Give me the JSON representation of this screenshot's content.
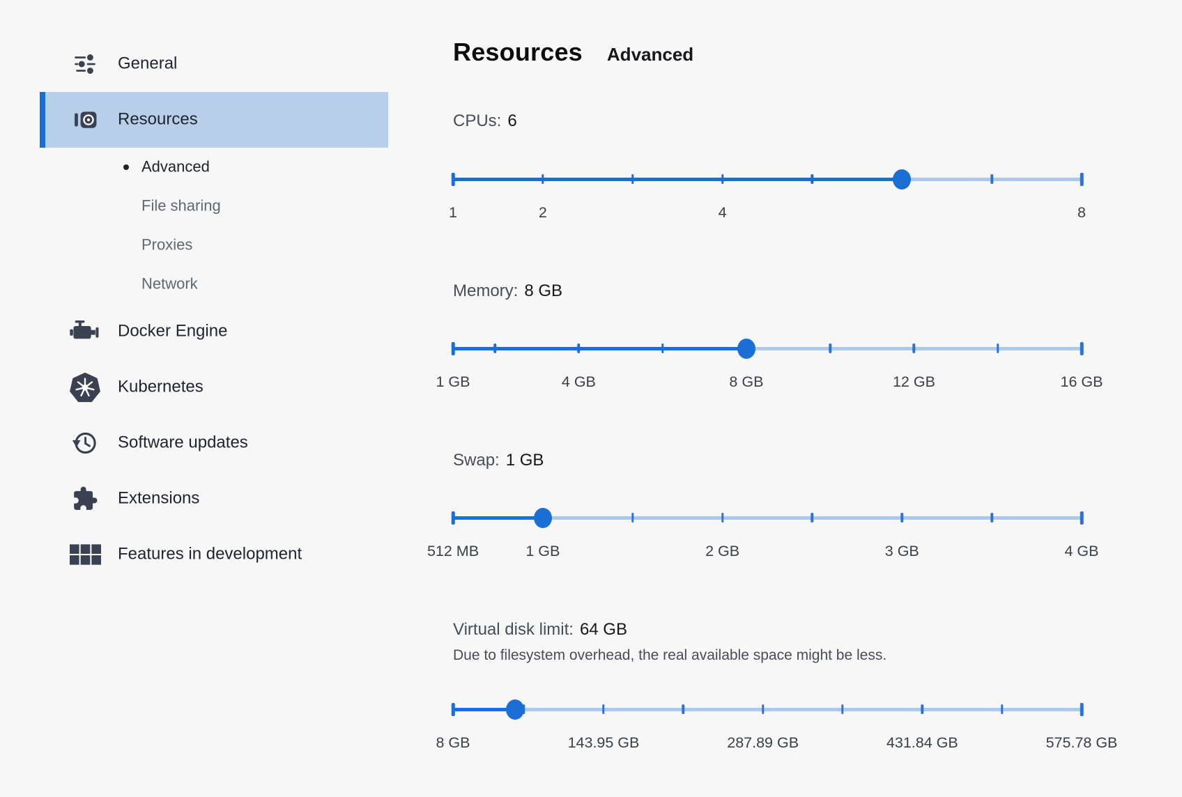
{
  "header": {
    "title": "Resources",
    "subtitle": "Advanced"
  },
  "sidebar": {
    "items": [
      {
        "label": "General",
        "icon": "tune-icon"
      },
      {
        "label": "Resources",
        "icon": "resources-icon",
        "selected": true,
        "children": [
          {
            "label": "Advanced",
            "active": true
          },
          {
            "label": "File sharing"
          },
          {
            "label": "Proxies"
          },
          {
            "label": "Network"
          }
        ]
      },
      {
        "label": "Docker Engine",
        "icon": "engine-icon"
      },
      {
        "label": "Kubernetes",
        "icon": "kubernetes-icon"
      },
      {
        "label": "Software updates",
        "icon": "history-icon"
      },
      {
        "label": "Extensions",
        "icon": "puzzle-icon"
      },
      {
        "label": "Features in development",
        "icon": "grid-icon"
      }
    ]
  },
  "sliders": [
    {
      "id": "cpus",
      "label": "CPUs:",
      "value": "6",
      "min": 1,
      "max": 8,
      "current": 6,
      "ticks": [
        1,
        2,
        3,
        4,
        5,
        6,
        7,
        8
      ],
      "tick_labels": [
        {
          "text": "1",
          "v": 1
        },
        {
          "text": "2",
          "v": 2
        },
        {
          "text": "4",
          "v": 4
        },
        {
          "text": "8",
          "v": 8
        }
      ]
    },
    {
      "id": "memory",
      "label": "Memory:",
      "value": "8 GB",
      "min": 1,
      "max": 16,
      "current": 8,
      "ticks": [
        1,
        2,
        4,
        6,
        8,
        10,
        12,
        14,
        16
      ],
      "tick_labels": [
        {
          "text": "1 GB",
          "v": 1
        },
        {
          "text": "4 GB",
          "v": 4
        },
        {
          "text": "8 GB",
          "v": 8
        },
        {
          "text": "12 GB",
          "v": 12
        },
        {
          "text": "16 GB",
          "v": 16
        }
      ]
    },
    {
      "id": "swap",
      "label": "Swap:",
      "value": "1 GB",
      "min": 0.5,
      "max": 4,
      "current": 1,
      "ticks": [
        0.5,
        1,
        1.5,
        2,
        2.5,
        3,
        3.5,
        4
      ],
      "tick_labels": [
        {
          "text": "512 MB",
          "v": 0.5
        },
        {
          "text": "1 GB",
          "v": 1
        },
        {
          "text": "2 GB",
          "v": 2
        },
        {
          "text": "3 GB",
          "v": 3
        },
        {
          "text": "4 GB",
          "v": 4
        }
      ]
    },
    {
      "id": "disk",
      "label": "Virtual disk limit:",
      "value": "64 GB",
      "note": "Due to filesystem overhead, the real available space might be less.",
      "min": 8,
      "max": 575.78,
      "current": 64,
      "ticks": [
        8,
        71.97,
        143.95,
        215.92,
        287.89,
        359.86,
        431.84,
        503.81,
        575.78
      ],
      "tick_labels": [
        {
          "text": "8 GB",
          "v": 8
        },
        {
          "text": "143.95 GB",
          "v": 143.95
        },
        {
          "text": "287.89 GB",
          "v": 287.89
        },
        {
          "text": "431.84 GB",
          "v": 431.84
        },
        {
          "text": "575.78 GB",
          "v": 575.78
        }
      ]
    }
  ],
  "colors": {
    "accent": "#1b6fd4",
    "track_light": "#abc9ec",
    "tick_blue": "#2f72cf",
    "sel_bg": "#b8cfea",
    "icon": "#3a4150",
    "text_primary": "#1e242d",
    "text_secondary": "#61676f",
    "label_gray": "#474d57",
    "bg": "#f7f7f8"
  }
}
